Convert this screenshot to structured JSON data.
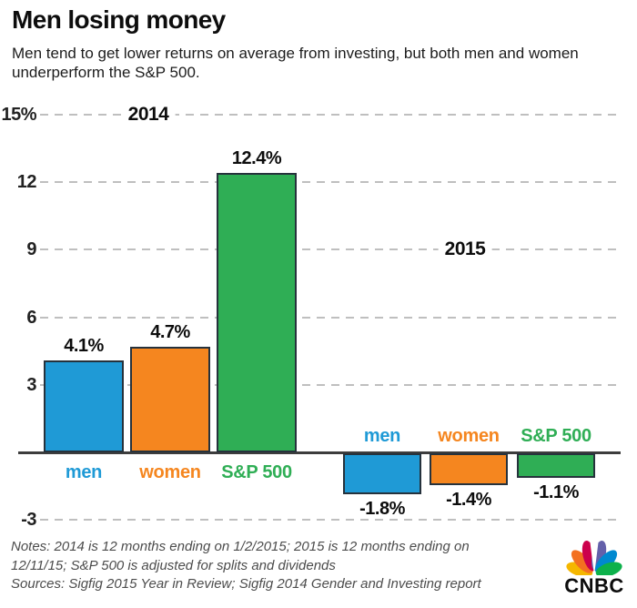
{
  "header": {
    "title": "Men losing money",
    "subtitle": "Men tend to get lower returns on average from investing, but both men and women\nunderperform the S&P 500."
  },
  "chart_data": {
    "type": "bar",
    "title": "Men losing money",
    "unit": "percent",
    "ylim": [
      -3.5,
      15.5
    ],
    "grid": true,
    "gridline_values": [
      15,
      12,
      9,
      6,
      3,
      -3
    ],
    "ytick_labels": [
      "15%",
      "12",
      "9",
      "6",
      "3",
      "-3"
    ],
    "categories": [
      "men",
      "women",
      "S&P 500"
    ],
    "category_colors": [
      "#1f9ad6",
      "#f5861f",
      "#2fae55"
    ],
    "bar_border_color": "#26323c",
    "baseline_value": 0,
    "groups": [
      {
        "label": "2014",
        "categories": [
          "men",
          "women",
          "S&P 500"
        ],
        "values": [
          4.1,
          4.7,
          12.4
        ],
        "value_labels": [
          "4.1%",
          "4.7%",
          "12.4%"
        ]
      },
      {
        "label": "2015",
        "categories": [
          "men",
          "women",
          "S&P 500"
        ],
        "values": [
          -1.8,
          -1.4,
          -1.1
        ],
        "value_labels": [
          "-1.8%",
          "-1.4%",
          "-1.1%"
        ]
      }
    ]
  },
  "footer": {
    "notes": "Notes: 2014 is 12 months ending on 1/2/2015; 2015 is 12 months ending on\n12/11/15; S&P 500 is adjusted for splits and dividends\nSources: Sigfig 2015 Year in Review; Sigfig 2014 Gender and Investing report"
  },
  "logo": {
    "brand": "CNBC",
    "feather_colors": [
      "#f5b700",
      "#f37021",
      "#cc004c",
      "#6460aa",
      "#0089d0",
      "#0db14b"
    ]
  }
}
